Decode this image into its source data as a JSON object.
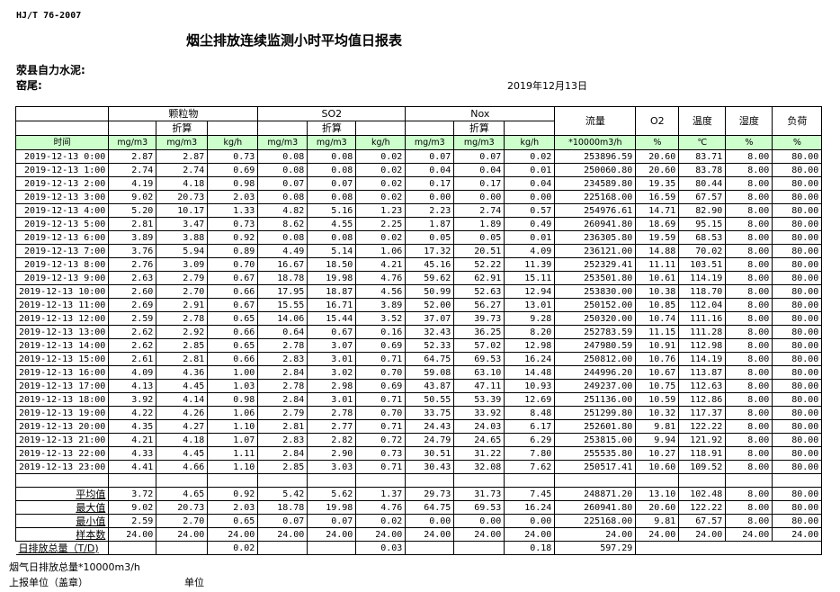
{
  "header": {
    "standard": "HJ/T  76-2007",
    "title": "烟尘排放连续监测小时平均值日报表",
    "company": "荥县自力水泥:",
    "kiln": "窑尾:",
    "date": "2019年12月13日"
  },
  "table": {
    "groups": [
      "颗粒物",
      "SO2",
      "Nox"
    ],
    "converted_label": "折算",
    "right_headers": [
      "流量",
      "O2",
      "温度",
      "湿度",
      "负荷"
    ],
    "units": [
      "时间",
      "mg/m3",
      "mg/m3",
      "kg/h",
      "mg/m3",
      "mg/m3",
      "kg/h",
      "mg/m3",
      "mg/m3",
      "kg/h",
      "*10000m3/h",
      "%",
      "℃",
      "%",
      "%"
    ],
    "header_color": "#ccffcc",
    "rows": [
      [
        "2019-12-13 0:00",
        "2.87",
        "2.87",
        "0.73",
        "0.08",
        "0.08",
        "0.02",
        "0.07",
        "0.07",
        "0.02",
        "253896.59",
        "20.60",
        "83.71",
        "8.00",
        "80.00"
      ],
      [
        "2019-12-13 1:00",
        "2.74",
        "2.74",
        "0.69",
        "0.08",
        "0.08",
        "0.02",
        "0.04",
        "0.04",
        "0.01",
        "250060.80",
        "20.60",
        "83.78",
        "8.00",
        "80.00"
      ],
      [
        "2019-12-13 2:00",
        "4.19",
        "4.18",
        "0.98",
        "0.07",
        "0.07",
        "0.02",
        "0.17",
        "0.17",
        "0.04",
        "234589.80",
        "19.35",
        "80.44",
        "8.00",
        "80.00"
      ],
      [
        "2019-12-13 3:00",
        "9.02",
        "20.73",
        "2.03",
        "0.08",
        "0.08",
        "0.02",
        "0.00",
        "0.00",
        "0.00",
        "225168.00",
        "16.59",
        "67.57",
        "8.00",
        "80.00"
      ],
      [
        "2019-12-13 4:00",
        "5.20",
        "10.17",
        "1.33",
        "4.82",
        "5.16",
        "1.23",
        "2.23",
        "2.74",
        "0.57",
        "254976.61",
        "14.71",
        "82.90",
        "8.00",
        "80.00"
      ],
      [
        "2019-12-13 5:00",
        "2.81",
        "3.47",
        "0.73",
        "8.62",
        "4.55",
        "2.25",
        "1.87",
        "1.89",
        "0.49",
        "260941.80",
        "18.69",
        "95.15",
        "8.00",
        "80.00"
      ],
      [
        "2019-12-13 6:00",
        "3.89",
        "3.88",
        "0.92",
        "0.08",
        "0.08",
        "0.02",
        "0.05",
        "0.05",
        "0.01",
        "236305.80",
        "19.59",
        "68.53",
        "8.00",
        "80.00"
      ],
      [
        "2019-12-13 7:00",
        "3.76",
        "5.94",
        "0.89",
        "4.49",
        "5.14",
        "1.06",
        "17.32",
        "20.51",
        "4.09",
        "236121.00",
        "14.88",
        "70.02",
        "8.00",
        "80.00"
      ],
      [
        "2019-12-13 8:00",
        "2.76",
        "3.09",
        "0.70",
        "16.67",
        "18.50",
        "4.21",
        "45.16",
        "52.22",
        "11.39",
        "252329.41",
        "11.11",
        "103.51",
        "8.00",
        "80.00"
      ],
      [
        "2019-12-13 9:00",
        "2.63",
        "2.79",
        "0.67",
        "18.78",
        "19.98",
        "4.76",
        "59.62",
        "62.91",
        "15.11",
        "253501.80",
        "10.61",
        "114.19",
        "8.00",
        "80.00"
      ],
      [
        "2019-12-13 10:00",
        "2.60",
        "2.70",
        "0.66",
        "17.95",
        "18.87",
        "4.56",
        "50.99",
        "52.63",
        "12.94",
        "253830.00",
        "10.38",
        "118.70",
        "8.00",
        "80.00"
      ],
      [
        "2019-12-13 11:00",
        "2.69",
        "2.91",
        "0.67",
        "15.55",
        "16.71",
        "3.89",
        "52.00",
        "56.27",
        "13.01",
        "250152.00",
        "10.85",
        "112.04",
        "8.00",
        "80.00"
      ],
      [
        "2019-12-13 12:00",
        "2.59",
        "2.78",
        "0.65",
        "14.06",
        "15.44",
        "3.52",
        "37.07",
        "39.73",
        "9.28",
        "250320.00",
        "10.74",
        "111.16",
        "8.00",
        "80.00"
      ],
      [
        "2019-12-13 13:00",
        "2.62",
        "2.92",
        "0.66",
        "0.64",
        "0.67",
        "0.16",
        "32.43",
        "36.25",
        "8.20",
        "252783.59",
        "11.15",
        "111.28",
        "8.00",
        "80.00"
      ],
      [
        "2019-12-13 14:00",
        "2.62",
        "2.85",
        "0.65",
        "2.78",
        "3.07",
        "0.69",
        "52.33",
        "57.02",
        "12.98",
        "247980.59",
        "10.91",
        "112.98",
        "8.00",
        "80.00"
      ],
      [
        "2019-12-13 15:00",
        "2.61",
        "2.81",
        "0.66",
        "2.83",
        "3.01",
        "0.71",
        "64.75",
        "69.53",
        "16.24",
        "250812.00",
        "10.76",
        "114.19",
        "8.00",
        "80.00"
      ],
      [
        "2019-12-13 16:00",
        "4.09",
        "4.36",
        "1.00",
        "2.84",
        "3.02",
        "0.70",
        "59.08",
        "63.10",
        "14.48",
        "244996.20",
        "10.67",
        "113.87",
        "8.00",
        "80.00"
      ],
      [
        "2019-12-13 17:00",
        "4.13",
        "4.45",
        "1.03",
        "2.78",
        "2.98",
        "0.69",
        "43.87",
        "47.11",
        "10.93",
        "249237.00",
        "10.75",
        "112.63",
        "8.00",
        "80.00"
      ],
      [
        "2019-12-13 18:00",
        "3.92",
        "4.14",
        "0.98",
        "2.84",
        "3.01",
        "0.71",
        "50.55",
        "53.39",
        "12.69",
        "251136.00",
        "10.59",
        "112.86",
        "8.00",
        "80.00"
      ],
      [
        "2019-12-13 19:00",
        "4.22",
        "4.26",
        "1.06",
        "2.79",
        "2.78",
        "0.70",
        "33.75",
        "33.92",
        "8.48",
        "251299.80",
        "10.32",
        "117.37",
        "8.00",
        "80.00"
      ],
      [
        "2019-12-13 20:00",
        "4.35",
        "4.27",
        "1.10",
        "2.81",
        "2.77",
        "0.71",
        "24.43",
        "24.03",
        "6.17",
        "252601.80",
        "9.81",
        "122.22",
        "8.00",
        "80.00"
      ],
      [
        "2019-12-13 21:00",
        "4.21",
        "4.18",
        "1.07",
        "2.83",
        "2.82",
        "0.72",
        "24.79",
        "24.65",
        "6.29",
        "253815.00",
        "9.94",
        "121.92",
        "8.00",
        "80.00"
      ],
      [
        "2019-12-13 22:00",
        "4.33",
        "4.45",
        "1.11",
        "2.84",
        "2.90",
        "0.73",
        "30.51",
        "31.22",
        "7.80",
        "255535.80",
        "10.27",
        "118.91",
        "8.00",
        "80.00"
      ],
      [
        "2019-12-13 23:00",
        "4.41",
        "4.66",
        "1.10",
        "2.85",
        "3.03",
        "0.71",
        "30.43",
        "32.08",
        "7.62",
        "250517.41",
        "10.60",
        "109.52",
        "8.00",
        "80.00"
      ]
    ],
    "stats": [
      [
        "平均值",
        "3.72",
        "4.65",
        "0.92",
        "5.42",
        "5.62",
        "1.37",
        "29.73",
        "31.73",
        "7.45",
        "248871.20",
        "13.10",
        "102.48",
        "8.00",
        "80.00"
      ],
      [
        "最大值",
        "9.02",
        "20.73",
        "2.03",
        "18.78",
        "19.98",
        "4.76",
        "64.75",
        "69.53",
        "16.24",
        "260941.80",
        "20.60",
        "122.22",
        "8.00",
        "80.00"
      ],
      [
        "最小值",
        "2.59",
        "2.70",
        "0.65",
        "0.07",
        "0.07",
        "0.02",
        "0.00",
        "0.00",
        "0.00",
        "225168.00",
        "9.81",
        "67.57",
        "8.00",
        "80.00"
      ],
      [
        "样本数",
        "24.00",
        "24.00",
        "24.00",
        "24.00",
        "24.00",
        "24.00",
        "24.00",
        "24.00",
        "24.00",
        "24.00",
        "24.00",
        "24.00",
        "24.00",
        "24.00"
      ]
    ],
    "daily_total": [
      "日排放总量（T/D)",
      "",
      "",
      "0.02",
      "",
      "",
      "0.03",
      "",
      "",
      "0.18",
      "597.29",
      "",
      "",
      "",
      ""
    ]
  },
  "footer": {
    "flue_gas_total": "烟气日排放总量*10000m3/h",
    "reporting_unit": "上报单位（盖章）",
    "unit": "单位"
  }
}
